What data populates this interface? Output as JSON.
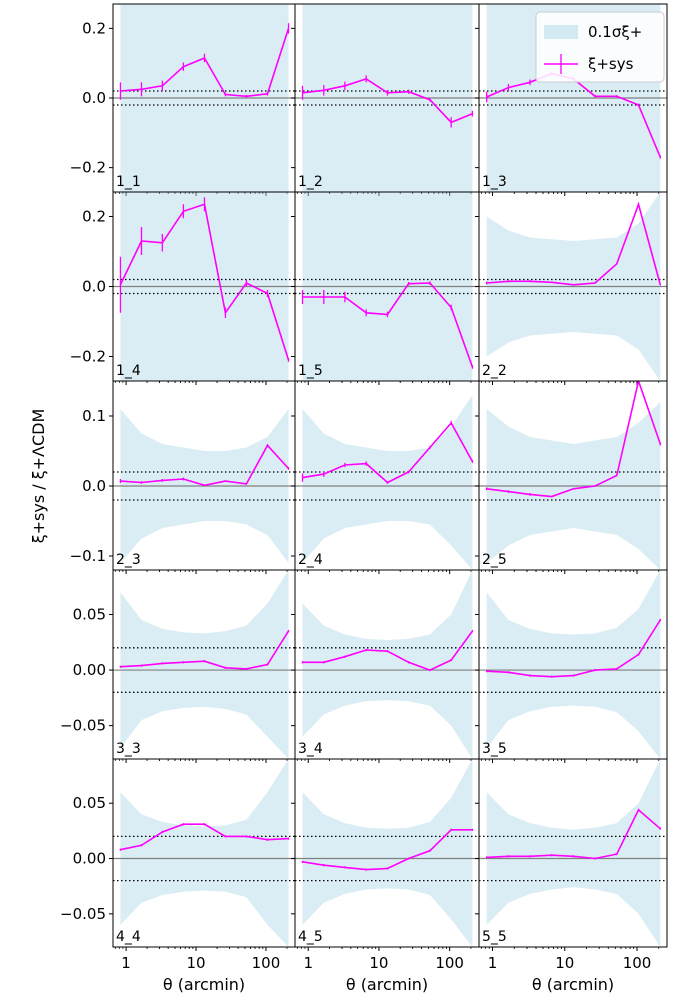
{
  "chart_data": {
    "type": "line",
    "xlabel": "θ (arcmin)",
    "ylabel": "ξ+sys / ξ+ΛCDM",
    "xscale": "log",
    "xlim": [
      0.65,
      260
    ],
    "x_tick_values": [
      1,
      10,
      100
    ],
    "x_tick_labels": [
      "1",
      "10",
      "100"
    ],
    "x": [
      0.83,
      1.66,
      3.3,
      6.6,
      13.2,
      26.3,
      52.5,
      105,
      210
    ],
    "grid": false,
    "legend": {
      "placement": "top-right",
      "entries": [
        {
          "label": "0.1σξ+",
          "kind": "band",
          "color": "#add8e6"
        },
        {
          "label": "ξ+sys",
          "kind": "line",
          "color": "#ff00ff"
        }
      ]
    },
    "reference_lines": {
      "zero_color": "#808080",
      "dotted_levels": [
        0.02,
        -0.02
      ]
    },
    "colors": {
      "signal": "#ff00ff",
      "band": "#add8e6"
    },
    "rows": [
      {
        "ylim": [
          -0.27,
          0.27
        ],
        "ticks": [
          -0.2,
          0.0,
          0.2
        ],
        "tick_labels": [
          "−0.2",
          "0.0",
          "0.2"
        ]
      },
      {
        "ylim": [
          -0.27,
          0.27
        ],
        "ticks": [
          -0.2,
          0.0,
          0.2
        ],
        "tick_labels": [
          "−0.2",
          "0.0",
          "0.2"
        ]
      },
      {
        "ylim": [
          -0.12,
          0.15
        ],
        "ticks": [
          -0.1,
          0.0,
          0.1
        ],
        "tick_labels": [
          "−0.1",
          "0.0",
          "0.1"
        ]
      },
      {
        "ylim": [
          -0.08,
          0.09
        ],
        "ticks": [
          -0.05,
          0.0,
          0.05
        ],
        "tick_labels": [
          "−0.05",
          "0.00",
          "0.05"
        ]
      },
      {
        "ylim": [
          -0.08,
          0.09
        ],
        "ticks": [
          -0.05,
          0.0,
          0.05
        ],
        "tick_labels": [
          "−0.05",
          "0.00",
          "0.05"
        ]
      }
    ],
    "panels": [
      {
        "label": "1_1",
        "values": [
          0.02,
          0.025,
          0.035,
          0.09,
          0.115,
          0.01,
          0.005,
          0.012,
          0.2
        ],
        "errors": [
          0.025,
          0.02,
          0.015,
          0.012,
          0.012,
          0.005,
          0.004,
          0.005,
          0.015
        ],
        "band": [
          1,
          1,
          1,
          1,
          1,
          1,
          1,
          1,
          1
        ]
      },
      {
        "label": "1_2",
        "values": [
          0.015,
          0.022,
          0.035,
          0.055,
          0.015,
          0.018,
          -0.005,
          -0.07,
          -0.045
        ],
        "errors": [
          0.02,
          0.015,
          0.012,
          0.01,
          0.008,
          0.006,
          0.005,
          0.015,
          0.008
        ],
        "band": [
          1,
          1,
          1,
          1,
          1,
          1,
          0.27,
          0.28,
          0.36
        ]
      },
      {
        "label": "1_3",
        "values": [
          0.003,
          0.03,
          0.045,
          0.07,
          0.055,
          0.005,
          0.005,
          -0.02,
          -0.17
        ],
        "errors": [
          0.015,
          0.01,
          0.008,
          0.006,
          0.005,
          0.004,
          0.003,
          0.004,
          0.004
        ],
        "band": [
          1,
          1,
          1,
          1,
          1,
          1,
          1,
          1,
          1
        ]
      },
      {
        "label": "1_4",
        "values": [
          0.005,
          0.13,
          0.125,
          0.215,
          0.235,
          -0.075,
          0.01,
          -0.02,
          -0.21
        ],
        "errors": [
          0.08,
          0.04,
          0.025,
          0.02,
          0.02,
          0.015,
          0.01,
          0.01,
          0.005
        ],
        "band": [
          1,
          1,
          1,
          1,
          1,
          1,
          1,
          1,
          1
        ]
      },
      {
        "label": "1_5",
        "values": [
          -0.03,
          -0.03,
          -0.03,
          -0.075,
          -0.08,
          0.008,
          0.01,
          -0.06,
          -0.23
        ],
        "errors": [
          0.02,
          0.02,
          0.015,
          0.01,
          0.008,
          0.005,
          0.005,
          0.008,
          0.005
        ],
        "band": [
          1,
          1,
          1,
          1,
          1,
          1,
          1,
          1,
          1
        ]
      },
      {
        "label": "2_2",
        "values": [
          0.01,
          0.015,
          0.015,
          0.012,
          0.005,
          0.01,
          0.065,
          0.235,
          0.005
        ],
        "errors": [
          0.004,
          0.003,
          0.003,
          0.002,
          0.002,
          0.002,
          0.002,
          0.003,
          0.002
        ],
        "band": [
          0.2,
          0.16,
          0.14,
          0.135,
          0.13,
          0.135,
          0.14,
          0.18,
          0.27
        ]
      },
      {
        "label": "2_3",
        "values": [
          0.007,
          0.005,
          0.008,
          0.01,
          0.001,
          0.007,
          0.003,
          0.058,
          0.025
        ],
        "errors": [
          0.003,
          0.002,
          0.002,
          0.002,
          0.001,
          0.001,
          0.001,
          0.002,
          0.002
        ],
        "band": [
          0.11,
          0.075,
          0.06,
          0.055,
          0.05,
          0.05,
          0.055,
          0.07,
          0.11
        ]
      },
      {
        "label": "2_4",
        "values": [
          0.012,
          0.017,
          0.03,
          0.032,
          0.005,
          0.02,
          0.055,
          0.09,
          0.035
        ],
        "errors": [
          0.006,
          0.004,
          0.003,
          0.003,
          0.002,
          0.002,
          0.002,
          0.003,
          0.002
        ],
        "band": [
          0.11,
          0.075,
          0.06,
          0.055,
          0.05,
          0.05,
          0.055,
          0.085,
          0.13
        ]
      },
      {
        "label": "2_5",
        "values": [
          -0.004,
          -0.008,
          -0.012,
          -0.015,
          -0.004,
          0.0,
          0.015,
          0.15,
          0.06
        ],
        "errors": [
          0.002,
          0.002,
          0.002,
          0.001,
          0.001,
          0.001,
          0.001,
          0.002,
          0.002
        ],
        "band": [
          0.11,
          0.085,
          0.07,
          0.065,
          0.06,
          0.065,
          0.07,
          0.09,
          0.12
        ]
      },
      {
        "label": "3_3",
        "values": [
          0.003,
          0.004,
          0.006,
          0.007,
          0.008,
          0.002,
          0.001,
          0.005,
          0.035
        ],
        "errors": [
          0.001,
          0.001,
          0.001,
          0.001,
          0.001,
          0.001,
          0.001,
          0.001,
          0.001
        ],
        "band": [
          0.07,
          0.045,
          0.037,
          0.034,
          0.033,
          0.035,
          0.04,
          0.06,
          0.1
        ]
      },
      {
        "label": "3_4",
        "values": [
          0.007,
          0.007,
          0.012,
          0.018,
          0.017,
          0.007,
          0.0,
          0.009,
          0.035
        ],
        "errors": [
          0.001,
          0.001,
          0.001,
          0.001,
          0.001,
          0.001,
          0.001,
          0.001,
          0.001
        ],
        "band": [
          0.06,
          0.04,
          0.032,
          0.028,
          0.027,
          0.028,
          0.032,
          0.05,
          0.09
        ]
      },
      {
        "label": "3_5",
        "values": [
          -0.001,
          -0.002,
          -0.005,
          -0.006,
          -0.005,
          0.0,
          0.001,
          0.014,
          0.045
        ],
        "errors": [
          0.001,
          0.001,
          0.001,
          0.001,
          0.001,
          0.001,
          0.001,
          0.001,
          0.001
        ],
        "band": [
          0.07,
          0.045,
          0.037,
          0.033,
          0.032,
          0.033,
          0.038,
          0.055,
          0.09
        ]
      },
      {
        "label": "4_4",
        "values": [
          0.008,
          0.012,
          0.024,
          0.031,
          0.031,
          0.02,
          0.02,
          0.017,
          0.018
        ],
        "errors": [
          0.001,
          0.001,
          0.001,
          0.001,
          0.001,
          0.001,
          0.001,
          0.001,
          0.001
        ],
        "band": [
          0.06,
          0.04,
          0.033,
          0.03,
          0.029,
          0.03,
          0.035,
          0.06,
          0.1
        ]
      },
      {
        "label": "4_5",
        "values": [
          -0.003,
          -0.006,
          -0.008,
          -0.01,
          -0.009,
          0.0,
          0.007,
          0.026,
          0.026
        ],
        "errors": [
          0.001,
          0.001,
          0.001,
          0.001,
          0.001,
          0.001,
          0.001,
          0.001,
          0.001
        ],
        "band": [
          0.06,
          0.04,
          0.032,
          0.028,
          0.027,
          0.028,
          0.033,
          0.055,
          0.09
        ]
      },
      {
        "label": "5_5",
        "values": [
          0.001,
          0.002,
          0.002,
          0.003,
          0.002,
          0.0,
          0.004,
          0.044,
          0.027
        ],
        "errors": [
          0.001,
          0.001,
          0.001,
          0.001,
          0.001,
          0.001,
          0.001,
          0.001,
          0.001
        ],
        "band": [
          0.06,
          0.04,
          0.032,
          0.028,
          0.026,
          0.028,
          0.032,
          0.05,
          0.09
        ]
      }
    ]
  }
}
